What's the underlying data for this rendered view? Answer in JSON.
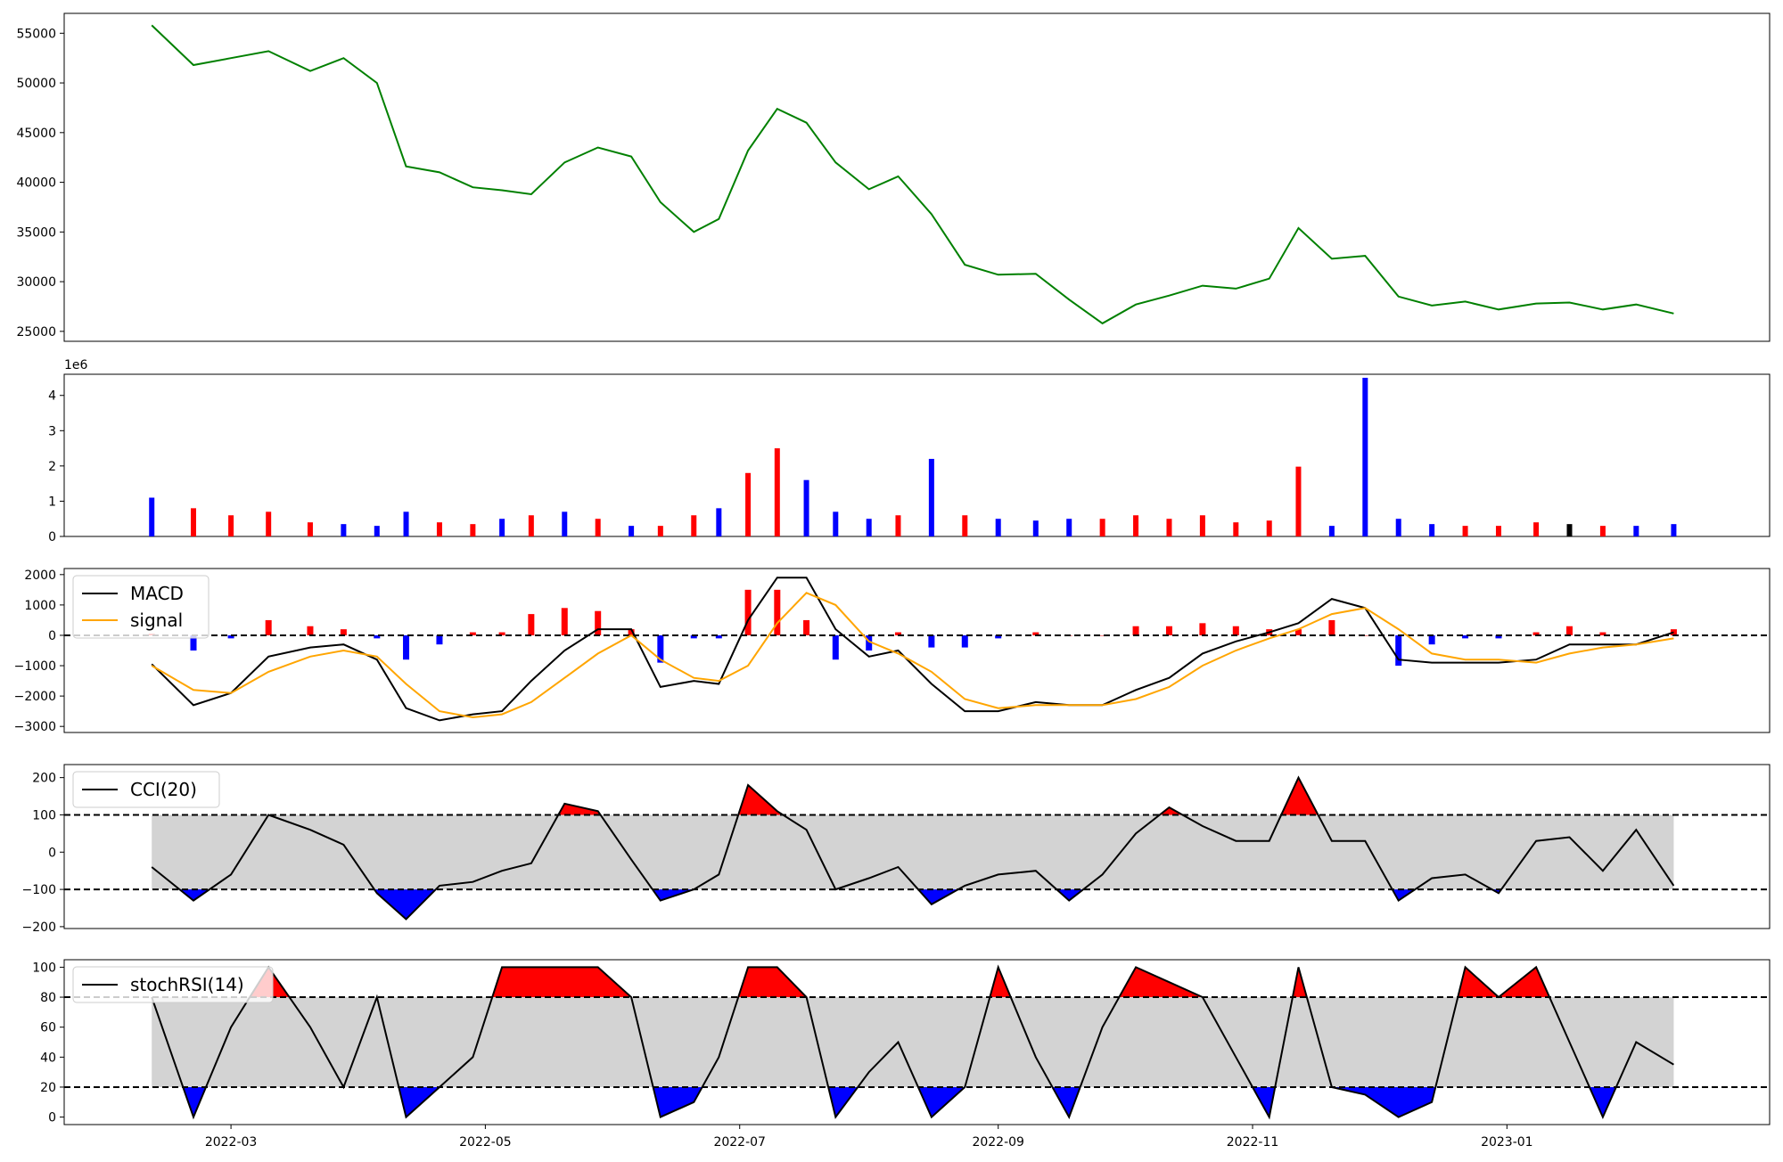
{
  "chart_data": [
    {
      "type": "line",
      "panel": "price",
      "title": "",
      "xlabel": "",
      "ylabel": "",
      "ylim": [
        24000,
        57000
      ],
      "yticks": [
        25000,
        30000,
        35000,
        40000,
        45000,
        50000,
        55000
      ],
      "ytick_labels": [
        "25000",
        "30000",
        "35000",
        "40000",
        "45000",
        "50000",
        "55000"
      ],
      "color": "#008000",
      "x_dates": [
        "2022-02-10",
        "2022-02-20",
        "2022-03-01",
        "2022-03-10",
        "2022-03-20",
        "2022-03-28",
        "2022-04-05",
        "2022-04-12",
        "2022-04-20",
        "2022-04-28",
        "2022-05-05",
        "2022-05-12",
        "2022-05-20",
        "2022-05-28",
        "2022-06-05",
        "2022-06-12",
        "2022-06-20",
        "2022-06-26",
        "2022-07-03",
        "2022-07-10",
        "2022-07-17",
        "2022-07-24",
        "2022-08-01",
        "2022-08-08",
        "2022-08-16",
        "2022-08-24",
        "2022-09-01",
        "2022-09-10",
        "2022-09-18",
        "2022-09-26",
        "2022-10-04",
        "2022-10-12",
        "2022-10-20",
        "2022-10-28",
        "2022-11-05",
        "2022-11-12",
        "2022-11-20",
        "2022-11-28",
        "2022-12-06",
        "2022-12-14",
        "2022-12-22",
        "2022-12-30",
        "2023-01-08",
        "2023-01-16",
        "2023-01-24",
        "2023-02-01",
        "2023-02-10"
      ],
      "values": [
        55800,
        51800,
        52500,
        53200,
        51200,
        52500,
        50000,
        41600,
        41000,
        39500,
        39200,
        38800,
        42000,
        43500,
        42600,
        38000,
        35000,
        36300,
        43200,
        47400,
        46000,
        42000,
        39300,
        40600,
        36800,
        31700,
        30700,
        30800,
        28200,
        25800,
        27700,
        28600,
        29600,
        29300,
        30300,
        35400,
        32300,
        32600,
        28500,
        27600,
        28000,
        27200,
        27800,
        27900,
        27200,
        27700,
        26800
      ]
    },
    {
      "type": "bar",
      "panel": "volume",
      "title": "",
      "ylim": [
        0,
        4.6
      ],
      "yticks": [
        0,
        1,
        2,
        3,
        4
      ],
      "ytick_labels": [
        "0",
        "1",
        "2",
        "3",
        "4"
      ],
      "scale_label": "1e6",
      "x_dates": [
        "2022-02-10",
        "2022-02-20",
        "2022-03-01",
        "2022-03-10",
        "2022-03-20",
        "2022-03-28",
        "2022-04-05",
        "2022-04-12",
        "2022-04-20",
        "2022-04-28",
        "2022-05-05",
        "2022-05-12",
        "2022-05-20",
        "2022-05-28",
        "2022-06-05",
        "2022-06-12",
        "2022-06-20",
        "2022-06-26",
        "2022-07-03",
        "2022-07-10",
        "2022-07-17",
        "2022-07-24",
        "2022-08-01",
        "2022-08-08",
        "2022-08-16",
        "2022-08-24",
        "2022-09-01",
        "2022-09-10",
        "2022-09-18",
        "2022-09-26",
        "2022-10-04",
        "2022-10-12",
        "2022-10-20",
        "2022-10-28",
        "2022-11-05",
        "2022-11-12",
        "2022-11-20",
        "2022-11-28",
        "2022-12-06",
        "2022-12-14",
        "2022-12-22",
        "2022-12-30",
        "2023-01-08",
        "2023-01-16",
        "2023-01-24",
        "2023-02-01",
        "2023-02-10"
      ],
      "values": [
        1.1,
        0.8,
        0.6,
        0.7,
        0.4,
        0.35,
        0.3,
        0.7,
        0.4,
        0.35,
        0.5,
        0.6,
        0.7,
        0.5,
        0.3,
        0.3,
        0.6,
        0.8,
        1.8,
        2.5,
        1.6,
        0.7,
        0.5,
        0.6,
        2.2,
        0.6,
        0.5,
        0.45,
        0.5,
        0.5,
        0.6,
        0.5,
        0.6,
        0.4,
        0.45,
        1.98,
        0.3,
        4.5,
        0.5,
        0.35,
        0.3,
        0.3,
        0.4,
        0.35,
        0.3,
        0.3,
        0.35
      ],
      "colors": [
        "blue",
        "red",
        "red",
        "red",
        "red",
        "blue",
        "blue",
        "blue",
        "red",
        "red",
        "blue",
        "red",
        "blue",
        "red",
        "blue",
        "red",
        "red",
        "blue",
        "red",
        "red",
        "blue",
        "blue",
        "blue",
        "red",
        "blue",
        "red",
        "blue",
        "blue",
        "blue",
        "red",
        "red",
        "red",
        "red",
        "red",
        "red",
        "red",
        "blue",
        "blue",
        "blue",
        "blue",
        "red",
        "red",
        "red",
        "black",
        "red",
        "blue",
        "blue"
      ]
    },
    {
      "type": "line",
      "panel": "macd",
      "title": "",
      "ylim": [
        -3200,
        2200
      ],
      "yticks": [
        -3000,
        -2000,
        -1000,
        0,
        1000,
        2000
      ],
      "ytick_labels": [
        "−3000",
        "−2000",
        "−1000",
        "0",
        "1000",
        "2000"
      ],
      "legend": "upper-left",
      "x_dates": [
        "2022-02-10",
        "2022-02-20",
        "2022-03-01",
        "2022-03-10",
        "2022-03-20",
        "2022-03-28",
        "2022-04-05",
        "2022-04-12",
        "2022-04-20",
        "2022-04-28",
        "2022-05-05",
        "2022-05-12",
        "2022-05-20",
        "2022-05-28",
        "2022-06-05",
        "2022-06-12",
        "2022-06-20",
        "2022-06-26",
        "2022-07-03",
        "2022-07-10",
        "2022-07-17",
        "2022-07-24",
        "2022-08-01",
        "2022-08-08",
        "2022-08-16",
        "2022-08-24",
        "2022-09-01",
        "2022-09-10",
        "2022-09-18",
        "2022-09-26",
        "2022-10-04",
        "2022-10-12",
        "2022-10-20",
        "2022-10-28",
        "2022-11-05",
        "2022-11-12",
        "2022-11-20",
        "2022-11-28",
        "2022-12-06",
        "2022-12-14",
        "2022-12-22",
        "2022-12-30",
        "2023-01-08",
        "2023-01-16",
        "2023-01-24",
        "2023-02-01",
        "2023-02-10"
      ],
      "series": [
        {
          "name": "MACD",
          "color": "#000000",
          "values": [
            -950,
            -2300,
            -1900,
            -700,
            -400,
            -300,
            -800,
            -2400,
            -2800,
            -2600,
            -2500,
            -1500,
            -500,
            200,
            200,
            -1700,
            -1500,
            -1600,
            500,
            1900,
            1900,
            200,
            -700,
            -500,
            -1600,
            -2500,
            -2500,
            -2200,
            -2300,
            -2300,
            -1800,
            -1400,
            -600,
            -200,
            100,
            400,
            1200,
            900,
            -800,
            -900,
            -900,
            -900,
            -800,
            -300,
            -300,
            -300,
            100
          ]
        },
        {
          "name": "signal",
          "color": "#FFA500",
          "values": [
            -1000,
            -1800,
            -1900,
            -1200,
            -700,
            -500,
            -700,
            -1600,
            -2500,
            -2700,
            -2600,
            -2200,
            -1400,
            -600,
            0,
            -800,
            -1400,
            -1500,
            -1000,
            400,
            1400,
            1000,
            -200,
            -600,
            -1200,
            -2100,
            -2400,
            -2300,
            -2300,
            -2300,
            -2100,
            -1700,
            -1000,
            -500,
            -100,
            200,
            700,
            900,
            200,
            -600,
            -800,
            -800,
            -900,
            -600,
            -400,
            -300,
            -100
          ]
        }
      ],
      "histogram": [
        50,
        -500,
        -100,
        500,
        300,
        200,
        -100,
        -800,
        -300,
        100,
        100,
        700,
        900,
        800,
        200,
        -900,
        -100,
        -100,
        1500,
        1500,
        500,
        -800,
        -500,
        100,
        -400,
        -400,
        -100,
        100,
        0,
        0,
        300,
        300,
        400,
        300,
        200,
        200,
        500,
        0,
        -1000,
        -300,
        -100,
        -100,
        100,
        300,
        100,
        0,
        200
      ]
    },
    {
      "type": "line",
      "panel": "cci",
      "title": "",
      "ylim": [
        -205,
        235
      ],
      "yticks": [
        -200,
        -100,
        0,
        100,
        200
      ],
      "ytick_labels": [
        "−200",
        "−100",
        "0",
        "100",
        "200"
      ],
      "thresholds": [
        100,
        -100
      ],
      "legend": "upper-left",
      "x_dates": [
        "2022-02-10",
        "2022-02-20",
        "2022-03-01",
        "2022-03-10",
        "2022-03-20",
        "2022-03-28",
        "2022-04-05",
        "2022-04-12",
        "2022-04-20",
        "2022-04-28",
        "2022-05-05",
        "2022-05-12",
        "2022-05-20",
        "2022-05-28",
        "2022-06-05",
        "2022-06-12",
        "2022-06-20",
        "2022-06-26",
        "2022-07-03",
        "2022-07-10",
        "2022-07-17",
        "2022-07-24",
        "2022-08-01",
        "2022-08-08",
        "2022-08-16",
        "2022-08-24",
        "2022-09-01",
        "2022-09-10",
        "2022-09-18",
        "2022-09-26",
        "2022-10-04",
        "2022-10-12",
        "2022-10-20",
        "2022-10-28",
        "2022-11-05",
        "2022-11-12",
        "2022-11-20",
        "2022-11-28",
        "2022-12-06",
        "2022-12-14",
        "2022-12-22",
        "2022-12-30",
        "2023-01-08",
        "2023-01-16",
        "2023-01-24",
        "2023-02-01",
        "2023-02-10"
      ],
      "series": [
        {
          "name": "CCI(20)",
          "color": "#000000",
          "values": [
            -40,
            -130,
            -60,
            100,
            60,
            20,
            -110,
            -180,
            -90,
            -80,
            -50,
            -30,
            130,
            110,
            -20,
            -130,
            -100,
            -60,
            180,
            110,
            60,
            -100,
            -70,
            -40,
            -140,
            -90,
            -60,
            -50,
            -130,
            -60,
            50,
            120,
            70,
            30,
            30,
            200,
            30,
            30,
            -130,
            -70,
            -60,
            -110,
            30,
            40,
            -50,
            60,
            -90
          ]
        }
      ]
    },
    {
      "type": "line",
      "panel": "stochrsi",
      "title": "",
      "ylim": [
        -5,
        105
      ],
      "yticks": [
        0,
        20,
        40,
        60,
        80,
        100
      ],
      "ytick_labels": [
        "0",
        "20",
        "40",
        "60",
        "80",
        "100"
      ],
      "thresholds": [
        80,
        20
      ],
      "legend": "upper-left",
      "x_dates": [
        "2022-02-10",
        "2022-02-20",
        "2022-03-01",
        "2022-03-10",
        "2022-03-20",
        "2022-03-28",
        "2022-04-05",
        "2022-04-12",
        "2022-04-20",
        "2022-04-28",
        "2022-05-05",
        "2022-05-12",
        "2022-05-20",
        "2022-05-28",
        "2022-06-05",
        "2022-06-12",
        "2022-06-20",
        "2022-06-26",
        "2022-07-03",
        "2022-07-10",
        "2022-07-17",
        "2022-07-24",
        "2022-08-01",
        "2022-08-08",
        "2022-08-16",
        "2022-08-24",
        "2022-09-01",
        "2022-09-10",
        "2022-09-18",
        "2022-09-26",
        "2022-10-04",
        "2022-10-12",
        "2022-10-20",
        "2022-10-28",
        "2022-11-05",
        "2022-11-12",
        "2022-11-20",
        "2022-11-28",
        "2022-12-06",
        "2022-12-14",
        "2022-12-22",
        "2022-12-30",
        "2023-01-08",
        "2023-01-16",
        "2023-01-24",
        "2023-02-01",
        "2023-02-10"
      ],
      "series": [
        {
          "name": "stochRSI(14)",
          "color": "#000000",
          "values": [
            80,
            0,
            60,
            100,
            60,
            20,
            80,
            0,
            20,
            40,
            100,
            100,
            100,
            100,
            80,
            0,
            10,
            40,
            100,
            100,
            80,
            0,
            30,
            50,
            0,
            20,
            100,
            40,
            0,
            60,
            100,
            90,
            80,
            40,
            0,
            100,
            20,
            15,
            0,
            10,
            100,
            80,
            100,
            50,
            0,
            50,
            35
          ]
        }
      ]
    }
  ],
  "x_axis": {
    "tick_labels": [
      "2022-03",
      "2022-05",
      "2022-07",
      "2022-09",
      "2022-11",
      "2023-01"
    ],
    "tick_dates": [
      "2022-03-01",
      "2022-05-01",
      "2022-07-01",
      "2022-09-01",
      "2022-11-01",
      "2023-01-01"
    ],
    "range": [
      "2022-01-20",
      "2023-03-05"
    ]
  }
}
